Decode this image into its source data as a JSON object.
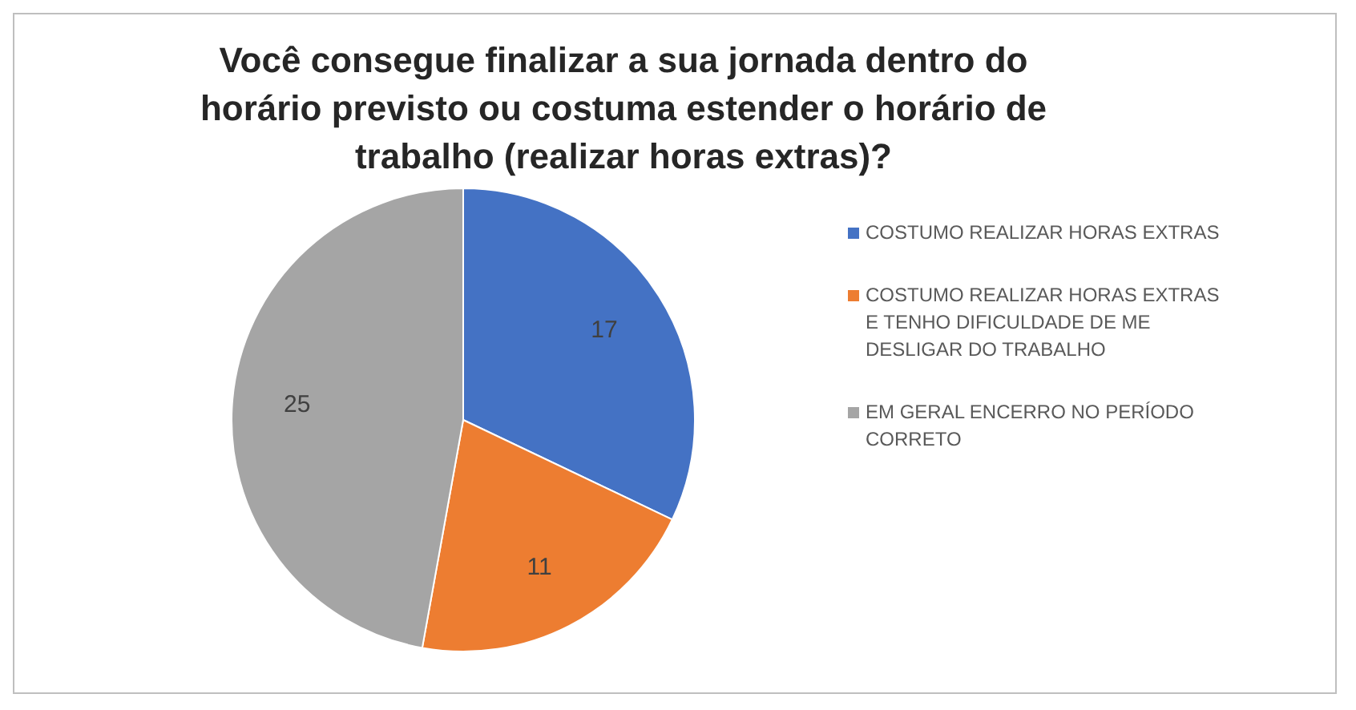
{
  "chart_data": {
    "type": "pie",
    "title": "Você consegue finalizar a sua jornada dentro do horário previsto ou costuma estender o horário de trabalho (realizar horas extras)?",
    "categories": [
      "COSTUMO REALIZAR HORAS EXTRAS",
      "COSTUMO REALIZAR HORAS EXTRAS E TENHO DIFICULDADE DE ME DESLIGAR DO TRABALHO",
      "EM GERAL ENCERRO NO PERÍODO CORRETO"
    ],
    "values": [
      17,
      11,
      25
    ],
    "colors": [
      "#4472c4",
      "#ed7d31",
      "#a5a5a5"
    ],
    "data_labels": true,
    "legend": "right"
  }
}
